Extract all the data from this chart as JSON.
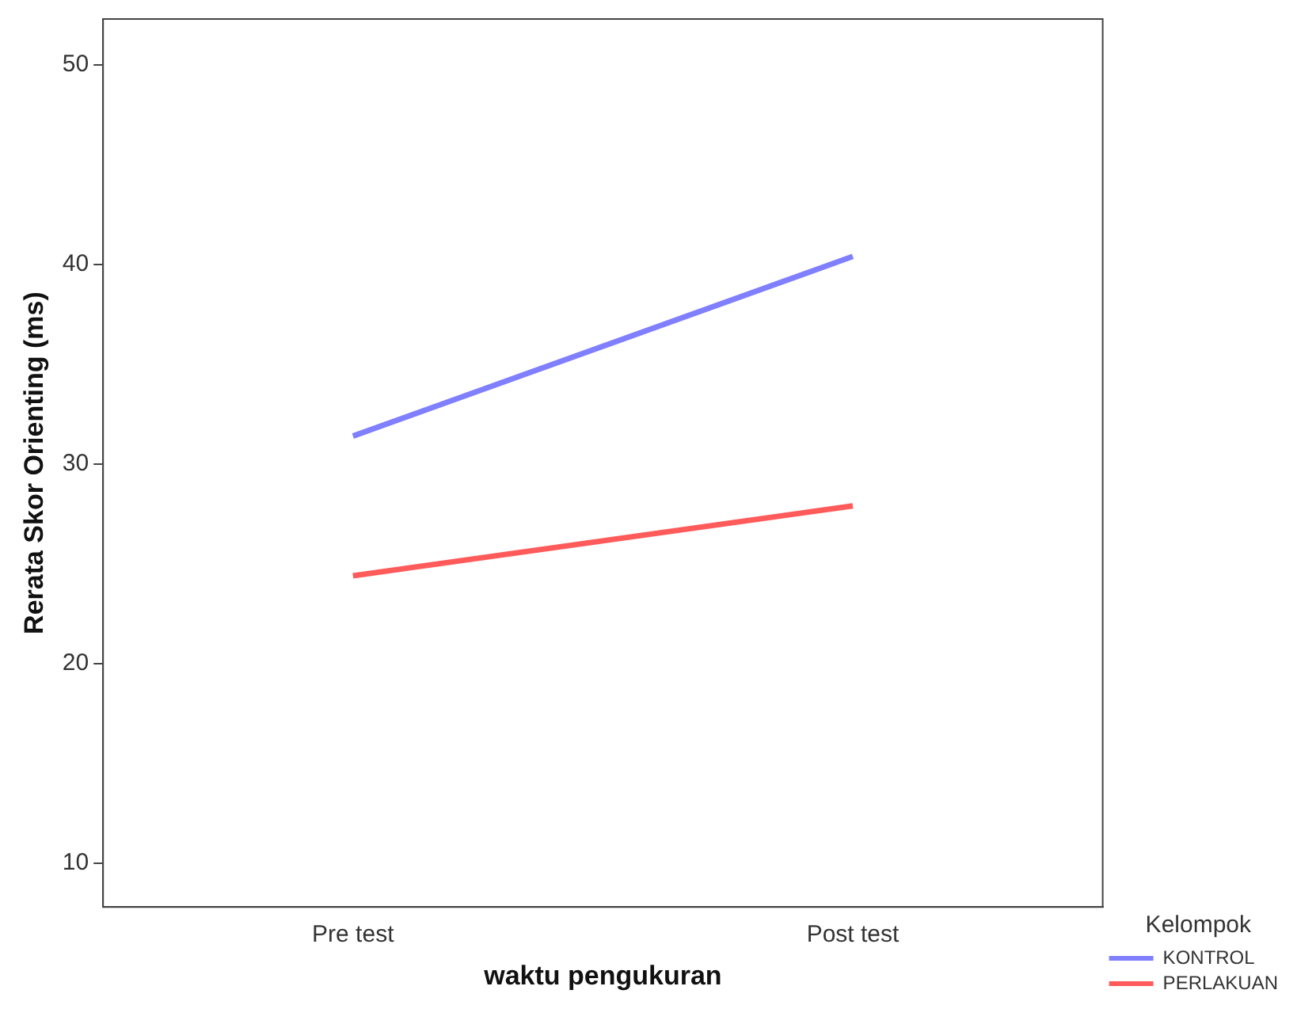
{
  "chart_data": {
    "type": "line",
    "xlabel": "waktu pengukuran",
    "ylabel": "Rerata Skor Orienting (ms)",
    "legend_title": "Kelompok",
    "categories": [
      "Pre test",
      "Post test"
    ],
    "series": [
      {
        "name": "KONTROL",
        "color": "#7f7fff",
        "values": [
          31.4,
          40.4
        ]
      },
      {
        "name": "PERLAKUAN",
        "color": "#ff5b5b",
        "values": [
          24.4,
          27.9
        ]
      }
    ],
    "ylim": [
      7.8,
      52.3
    ],
    "yticks": [
      10,
      20,
      30,
      40,
      50
    ],
    "grid": false,
    "legend": "bottom right",
    "marker": "none",
    "line_style": "solid"
  }
}
